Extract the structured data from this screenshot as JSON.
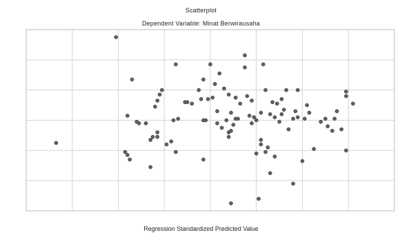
{
  "chart_data": {
    "type": "scatter",
    "title": "Scatterplot",
    "subtitle": "Dependent Variable: Minat Berwirausaha",
    "xlabel": "Regression Standardized Predicted Value",
    "ylabel": "",
    "xlim": [
      -4,
      4
    ],
    "ylim": [
      -3,
      3
    ],
    "x_ticks": [
      -3,
      -2,
      -1,
      0,
      1,
      2,
      3
    ],
    "y_ticks": [
      -2,
      -1,
      0,
      1,
      2
    ],
    "x_tick_labels": [
      "",
      "",
      "",
      "",
      "",
      "",
      ""
    ],
    "y_tick_labels": [
      "",
      "",
      "",
      "",
      ""
    ],
    "grid": true,
    "colors": {
      "point_fill": "#606060",
      "point_stroke": "#333333",
      "grid": "#d4d4d4",
      "frame": "#bbbbbb"
    },
    "points": [
      {
        "x": -3.35,
        "y": -0.75
      },
      {
        "x": -2.05,
        "y": 2.75
      },
      {
        "x": -1.85,
        "y": -1.05
      },
      {
        "x": -1.8,
        "y": -1.15
      },
      {
        "x": -1.75,
        "y": -1.3
      },
      {
        "x": -1.8,
        "y": 0.15
      },
      {
        "x": -1.7,
        "y": 1.35
      },
      {
        "x": -1.6,
        "y": -0.05
      },
      {
        "x": -1.55,
        "y": -0.1
      },
      {
        "x": -1.4,
        "y": -0.1
      },
      {
        "x": -1.3,
        "y": -0.65
      },
      {
        "x": -1.3,
        "y": -1.55
      },
      {
        "x": -1.25,
        "y": -0.55
      },
      {
        "x": -1.15,
        "y": -0.55
      },
      {
        "x": -1.15,
        "y": -0.4
      },
      {
        "x": -1.2,
        "y": 0.45
      },
      {
        "x": -1.15,
        "y": 0.65
      },
      {
        "x": -1.1,
        "y": 0.85
      },
      {
        "x": -1.05,
        "y": 1.0
      },
      {
        "x": -0.95,
        "y": -0.8
      },
      {
        "x": -0.85,
        "y": -0.7
      },
      {
        "x": -0.8,
        "y": 0.0
      },
      {
        "x": -0.75,
        "y": -1.05
      },
      {
        "x": -0.75,
        "y": 1.85
      },
      {
        "x": -0.7,
        "y": 0.05
      },
      {
        "x": -0.55,
        "y": 0.6
      },
      {
        "x": -0.5,
        "y": 0.6
      },
      {
        "x": -0.4,
        "y": 0.55
      },
      {
        "x": -0.25,
        "y": 1.0
      },
      {
        "x": -0.2,
        "y": 0.7
      },
      {
        "x": -0.15,
        "y": 1.35
      },
      {
        "x": -0.15,
        "y": 0.0
      },
      {
        "x": -0.1,
        "y": 0.0
      },
      {
        "x": -0.15,
        "y": -1.3
      },
      {
        "x": -0.05,
        "y": 0.7
      },
      {
        "x": 0.0,
        "y": 1.85
      },
      {
        "x": 0.05,
        "y": 0.75
      },
      {
        "x": 0.1,
        "y": 1.2
      },
      {
        "x": 0.15,
        "y": 0.3
      },
      {
        "x": 0.15,
        "y": -0.1
      },
      {
        "x": 0.2,
        "y": 1.55
      },
      {
        "x": 0.25,
        "y": -0.25
      },
      {
        "x": 0.3,
        "y": 1.05
      },
      {
        "x": 0.35,
        "y": 0.0
      },
      {
        "x": 0.4,
        "y": 0.85
      },
      {
        "x": 0.4,
        "y": -0.4
      },
      {
        "x": 0.4,
        "y": -0.55
      },
      {
        "x": 0.45,
        "y": 0.25
      },
      {
        "x": 0.45,
        "y": -0.35
      },
      {
        "x": 0.5,
        "y": -0.15
      },
      {
        "x": 0.45,
        "y": -2.75
      },
      {
        "x": 0.55,
        "y": 0.75
      },
      {
        "x": 0.55,
        "y": 0.05
      },
      {
        "x": 0.6,
        "y": 0.05
      },
      {
        "x": 0.65,
        "y": 0.55
      },
      {
        "x": 0.75,
        "y": 2.15
      },
      {
        "x": 0.75,
        "y": 1.75
      },
      {
        "x": 0.8,
        "y": 0.8
      },
      {
        "x": 0.85,
        "y": 0.15
      },
      {
        "x": 0.9,
        "y": -0.1
      },
      {
        "x": 0.9,
        "y": 0.65
      },
      {
        "x": 0.95,
        "y": 0.1
      },
      {
        "x": 1.0,
        "y": 0.0
      },
      {
        "x": 1.0,
        "y": -1.1
      },
      {
        "x": 1.05,
        "y": -2.6
      },
      {
        "x": 1.1,
        "y": 0.25
      },
      {
        "x": 1.1,
        "y": -0.65
      },
      {
        "x": 1.1,
        "y": -0.8
      },
      {
        "x": 1.15,
        "y": 1.85
      },
      {
        "x": 1.2,
        "y": 1.0
      },
      {
        "x": 1.2,
        "y": -1.05
      },
      {
        "x": 1.25,
        "y": -0.9
      },
      {
        "x": 1.3,
        "y": -1.75
      },
      {
        "x": 1.3,
        "y": 0.2
      },
      {
        "x": 1.35,
        "y": 0.6
      },
      {
        "x": 1.4,
        "y": 0.1
      },
      {
        "x": 1.4,
        "y": -1.2
      },
      {
        "x": 1.45,
        "y": 0.55
      },
      {
        "x": 1.5,
        "y": -0.05
      },
      {
        "x": 1.55,
        "y": 0.7
      },
      {
        "x": 1.55,
        "y": 0.2
      },
      {
        "x": 1.6,
        "y": 0.35
      },
      {
        "x": 1.65,
        "y": 1.0
      },
      {
        "x": 1.7,
        "y": -0.3
      },
      {
        "x": 1.8,
        "y": 0.05
      },
      {
        "x": 1.8,
        "y": -2.1
      },
      {
        "x": 1.85,
        "y": 0.3
      },
      {
        "x": 1.9,
        "y": 1.0
      },
      {
        "x": 1.9,
        "y": 0.1
      },
      {
        "x": 2.0,
        "y": -1.35
      },
      {
        "x": 2.05,
        "y": 0.05
      },
      {
        "x": 2.1,
        "y": 0.5
      },
      {
        "x": 2.15,
        "y": 0.25
      },
      {
        "x": 2.25,
        "y": -0.95
      },
      {
        "x": 2.4,
        "y": -0.05
      },
      {
        "x": 2.5,
        "y": 0.05
      },
      {
        "x": 2.55,
        "y": -0.2
      },
      {
        "x": 2.65,
        "y": -0.35
      },
      {
        "x": 2.7,
        "y": 0.05
      },
      {
        "x": 2.75,
        "y": 0.3
      },
      {
        "x": 2.85,
        "y": -0.3
      },
      {
        "x": 2.95,
        "y": 0.8
      },
      {
        "x": 2.95,
        "y": 0.95
      },
      {
        "x": 2.95,
        "y": -1.0
      },
      {
        "x": 3.1,
        "y": 0.55
      }
    ]
  }
}
